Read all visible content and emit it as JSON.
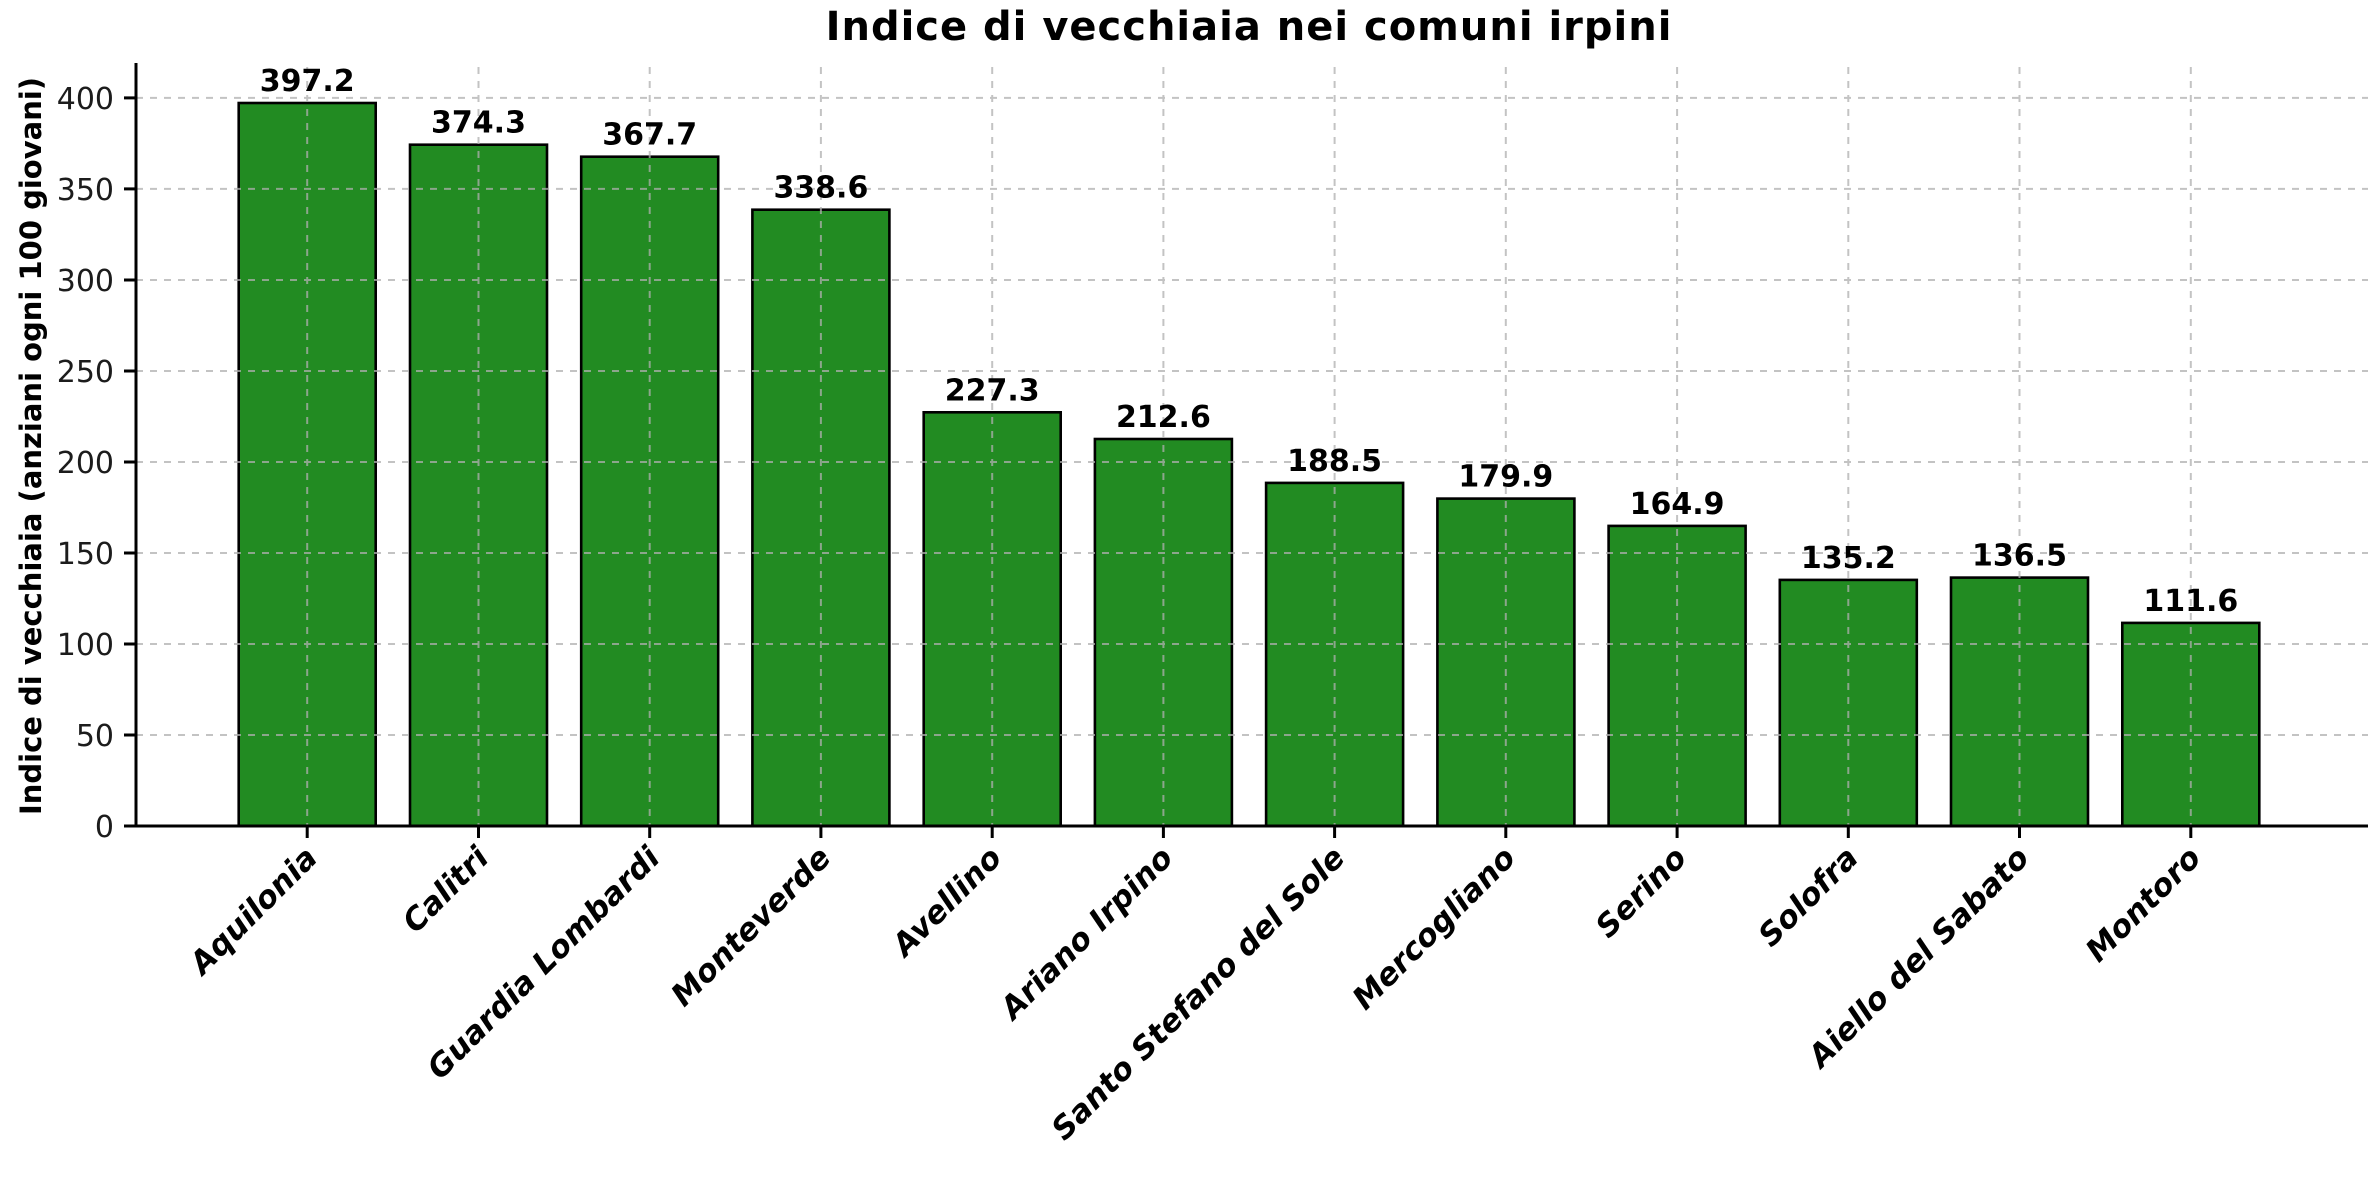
{
  "figure": {
    "background": "#ffffff"
  },
  "chart_data": {
    "type": "bar",
    "title": "Indice di vecchiaia nei comuni irpini",
    "ylabel": "Indice di vecchiaia (anziani ogni 100 giovani)",
    "xlabel": "",
    "categories": [
      "Aquilonia",
      "Calitri",
      "Guardia Lombardi",
      "Monteverde",
      "Avellino",
      "Ariano Irpino",
      "Santo Stefano del Sole",
      "Mercogliano",
      "Serino",
      "Solofra",
      "Aiello del Sabato",
      "Montoro"
    ],
    "values": [
      397.2,
      374.3,
      367.7,
      338.6,
      227.3,
      212.6,
      188.5,
      179.9,
      164.9,
      135.2,
      136.5,
      111.6
    ],
    "value_labels": [
      "397.2",
      "374.3",
      "367.7",
      "338.6",
      "227.3",
      "212.6",
      "188.5",
      "179.9",
      "164.9",
      "135.2",
      "136.5",
      "111.6"
    ],
    "yticks": [
      0,
      50,
      100,
      150,
      200,
      250,
      300,
      350,
      400
    ],
    "ylim": [
      0,
      417
    ],
    "legend": null,
    "grid": {
      "visible": true,
      "axis": "both",
      "linestyle": "dashed",
      "drawn_above_bars": true
    },
    "style": {
      "bar_color": "#228B22",
      "bar_edge_color": "#000000",
      "grid_color": "#b0b0b0",
      "grid_alpha": 0.75,
      "spine_color": "#000000",
      "tick_color": "#000000",
      "text_color": "#000000",
      "tick_label_color": "#1c1c1c"
    }
  }
}
